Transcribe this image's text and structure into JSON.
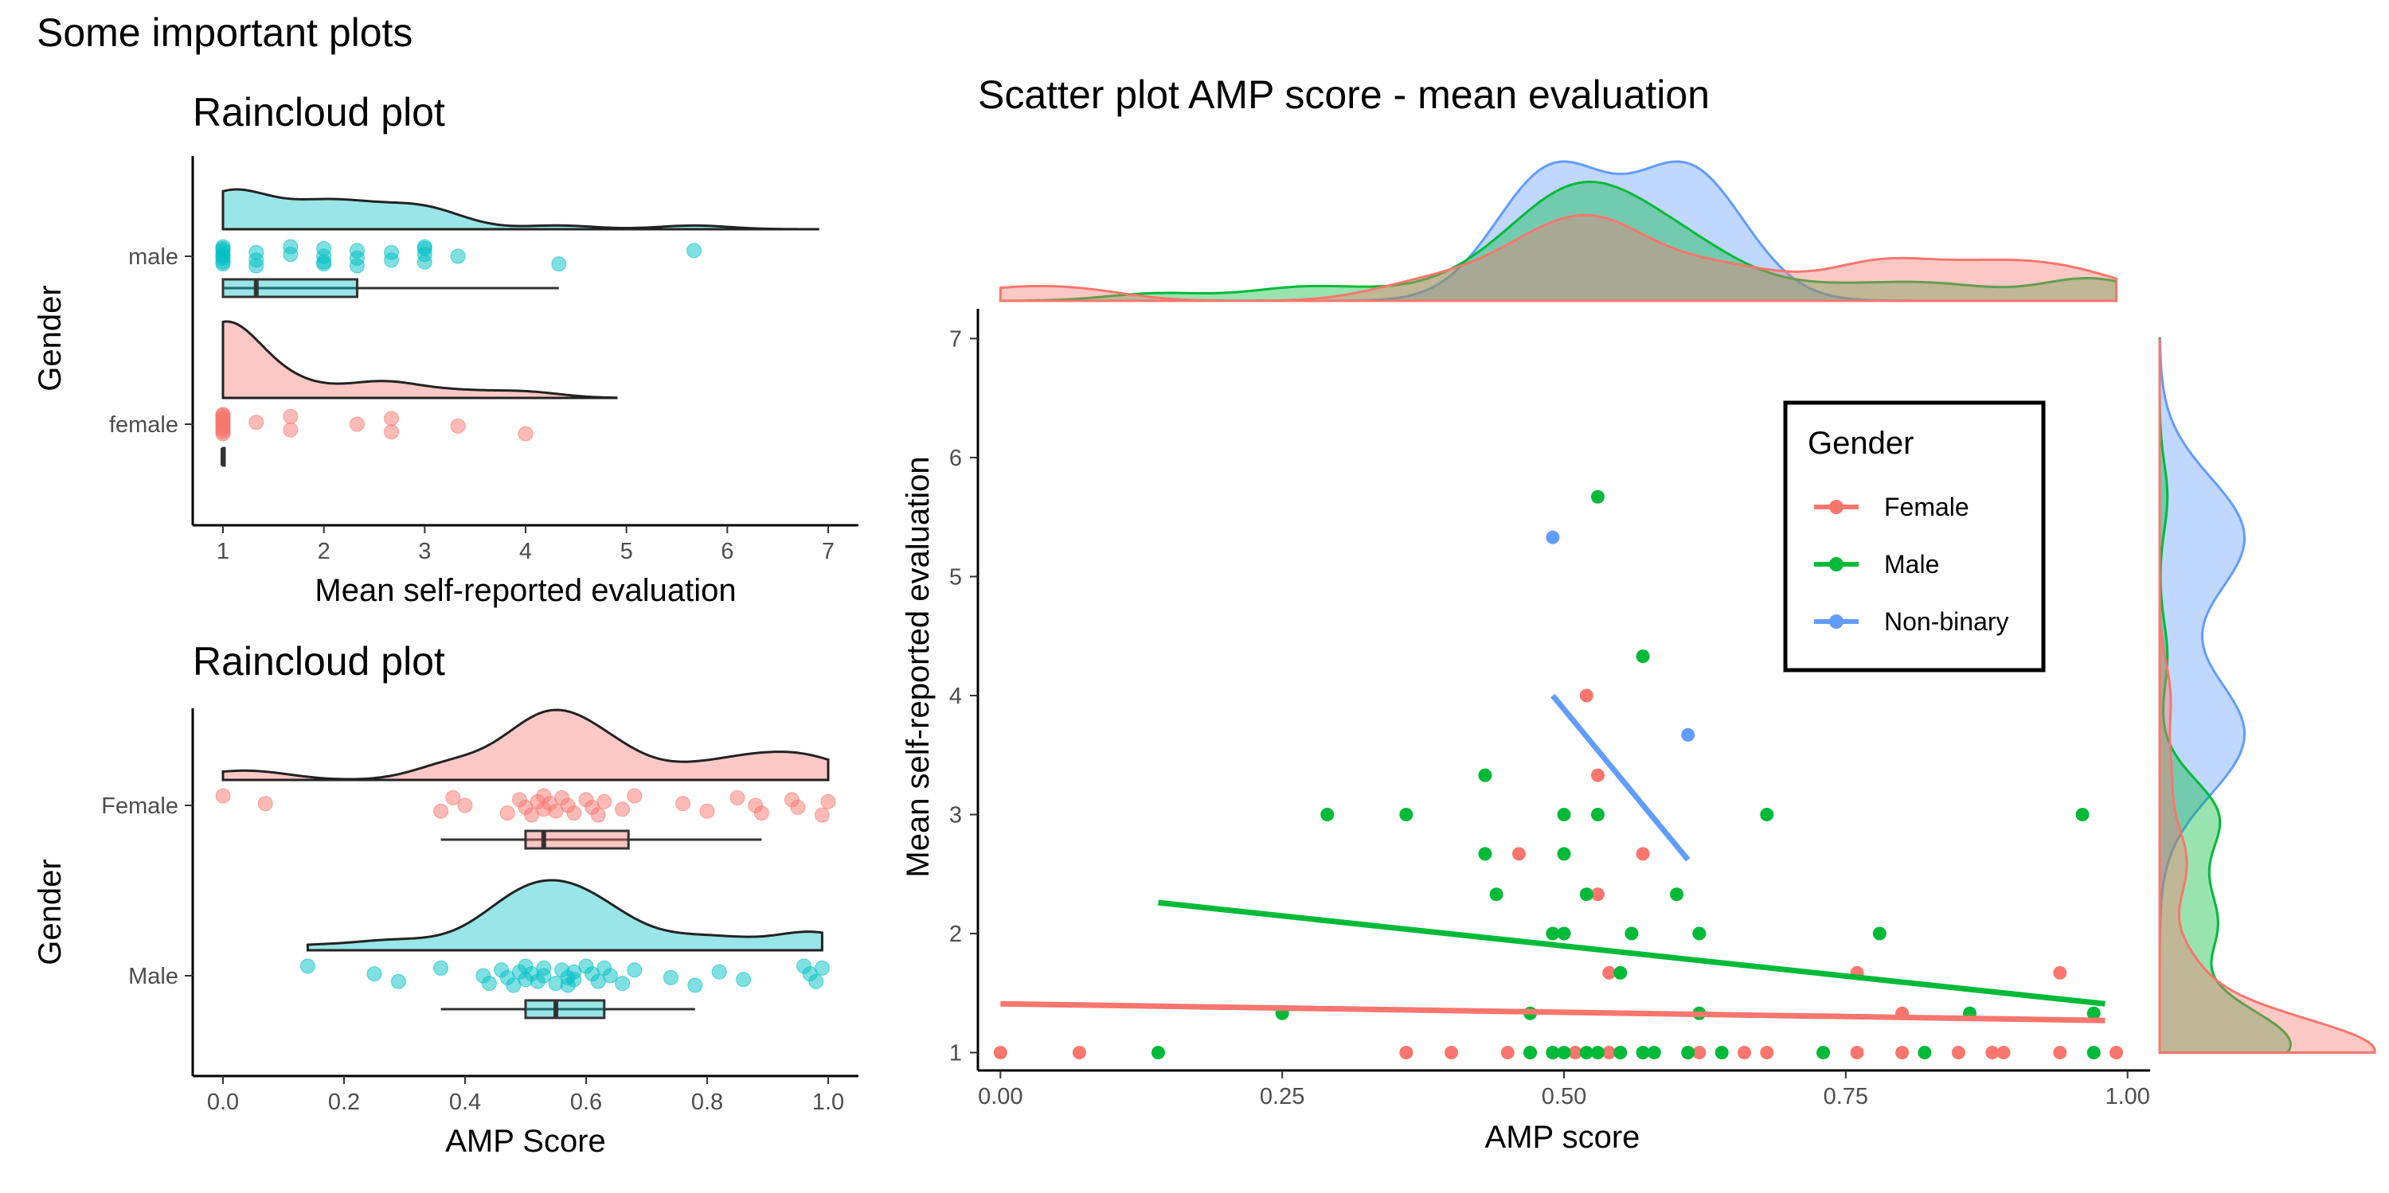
{
  "page_title": "Some important plots",
  "colors": {
    "female": "#F8766D",
    "male": "#00BA38",
    "nonbinary": "#619CFF",
    "rc_male": "#00BFC4",
    "rc_female": "#F8766D"
  },
  "chart_data": [
    {
      "type": "raincloud",
      "title": "Raincloud plot",
      "xlabel": "Mean self-reported evaluation",
      "ylabel": "Gender",
      "xlim": [
        0.7,
        7.3
      ],
      "xticks": [
        "1",
        "2",
        "3",
        "4",
        "5",
        "6",
        "7"
      ],
      "categories": [
        "male",
        "female"
      ],
      "series": [
        {
          "name": "male",
          "points": [
            1,
            1,
            1,
            1,
            1,
            1,
            1,
            1,
            1.33,
            1.33,
            1.33,
            1.67,
            1.67,
            2,
            2,
            2,
            2,
            2.33,
            2.33,
            2.33,
            2.67,
            2.67,
            3,
            3,
            3,
            3,
            3.33,
            4.33,
            5.67
          ],
          "box": {
            "min": 1,
            "q1": 1,
            "median": 1.33,
            "q3": 2.33,
            "max": 4.33
          },
          "density_max": 6.9
        },
        {
          "name": "female",
          "points": [
            1,
            1,
            1,
            1,
            1,
            1,
            1,
            1,
            1,
            1,
            1,
            1,
            1.33,
            1.67,
            1.67,
            2.33,
            2.67,
            2.67,
            3.33,
            4
          ],
          "box": {
            "min": 1,
            "q1": 1,
            "median": 1,
            "q3": 1,
            "max": 1
          },
          "density_max": 4.9
        }
      ]
    },
    {
      "type": "raincloud",
      "title": "Raincloud plot",
      "xlabel": "AMP Score",
      "ylabel": "Gender",
      "xlim": [
        -0.05,
        1.05
      ],
      "xticks": [
        "0.0",
        "0.2",
        "0.4",
        "0.6",
        "0.8",
        "1.0"
      ],
      "categories": [
        "Female",
        "Male"
      ],
      "series": [
        {
          "name": "Female",
          "points": [
            0.0,
            0.07,
            0.36,
            0.38,
            0.4,
            0.47,
            0.49,
            0.5,
            0.51,
            0.52,
            0.53,
            0.53,
            0.54,
            0.55,
            0.56,
            0.57,
            0.58,
            0.6,
            0.61,
            0.62,
            0.63,
            0.66,
            0.68,
            0.76,
            0.8,
            0.85,
            0.88,
            0.89,
            0.94,
            0.95,
            0.99,
            1.0
          ],
          "box": {
            "min": 0.36,
            "q1": 0.5,
            "median": 0.53,
            "q3": 0.67,
            "max": 0.89
          }
        },
        {
          "name": "Male",
          "points": [
            0.14,
            0.25,
            0.29,
            0.36,
            0.43,
            0.44,
            0.46,
            0.47,
            0.48,
            0.49,
            0.5,
            0.5,
            0.51,
            0.52,
            0.53,
            0.53,
            0.55,
            0.56,
            0.57,
            0.57,
            0.58,
            0.58,
            0.6,
            0.61,
            0.62,
            0.63,
            0.64,
            0.66,
            0.68,
            0.74,
            0.78,
            0.82,
            0.86,
            0.96,
            0.97,
            0.98,
            0.99
          ],
          "box": {
            "min": 0.36,
            "q1": 0.5,
            "median": 0.55,
            "q3": 0.63,
            "max": 0.78
          }
        }
      ]
    },
    {
      "type": "scatter",
      "title": "Scatter plot AMP score - mean evaluation",
      "xlabel": "AMP score",
      "ylabel": "Mean self-reported evaluation",
      "xlim": [
        -0.02,
        1.02
      ],
      "ylim": [
        0.85,
        7.25
      ],
      "xticks": [
        "0.00",
        "0.25",
        "0.50",
        "0.75",
        "1.00"
      ],
      "yticks": [
        "1",
        "2",
        "3",
        "4",
        "5",
        "6",
        "7"
      ],
      "legend": {
        "title": "Gender",
        "position": "top-right"
      },
      "series": [
        {
          "name": "Female",
          "color": "#F8766D",
          "points": [
            [
              0.0,
              1
            ],
            [
              0.07,
              1
            ],
            [
              0.36,
              1
            ],
            [
              0.4,
              1
            ],
            [
              0.45,
              1
            ],
            [
              0.47,
              1
            ],
            [
              0.49,
              1
            ],
            [
              0.51,
              1
            ],
            [
              0.54,
              1
            ],
            [
              0.61,
              1
            ],
            [
              0.62,
              1
            ],
            [
              0.66,
              1
            ],
            [
              0.68,
              1
            ],
            [
              0.76,
              1
            ],
            [
              0.8,
              1
            ],
            [
              0.85,
              1
            ],
            [
              0.88,
              1
            ],
            [
              0.89,
              1
            ],
            [
              0.94,
              1
            ],
            [
              0.99,
              1
            ],
            [
              0.46,
              2.67
            ],
            [
              0.53,
              2.33
            ],
            [
              0.57,
              2.67
            ],
            [
              0.54,
              1.67
            ],
            [
              0.76,
              1.67
            ],
            [
              0.8,
              1.33
            ],
            [
              0.94,
              1.67
            ],
            [
              0.52,
              4.0
            ],
            [
              0.53,
              3.33
            ]
          ],
          "trend": [
            [
              0.0,
              1.41
            ],
            [
              0.98,
              1.27
            ]
          ]
        },
        {
          "name": "Male",
          "color": "#00BA38",
          "points": [
            [
              0.14,
              1
            ],
            [
              0.47,
              1
            ],
            [
              0.49,
              1
            ],
            [
              0.5,
              1
            ],
            [
              0.52,
              1
            ],
            [
              0.53,
              1
            ],
            [
              0.55,
              1
            ],
            [
              0.57,
              1
            ],
            [
              0.58,
              1
            ],
            [
              0.61,
              1
            ],
            [
              0.64,
              1
            ],
            [
              0.73,
              1
            ],
            [
              0.82,
              1
            ],
            [
              0.97,
              1
            ],
            [
              0.25,
              1.33
            ],
            [
              0.47,
              1.33
            ],
            [
              0.62,
              1.33
            ],
            [
              0.86,
              1.33
            ],
            [
              0.97,
              1.33
            ],
            [
              0.49,
              2.0
            ],
            [
              0.5,
              2.0
            ],
            [
              0.55,
              1.67
            ],
            [
              0.56,
              2.0
            ],
            [
              0.62,
              2.0
            ],
            [
              0.78,
              2.0
            ],
            [
              0.44,
              2.33
            ],
            [
              0.52,
              2.33
            ],
            [
              0.6,
              2.33
            ],
            [
              0.43,
              2.67
            ],
            [
              0.5,
              2.67
            ],
            [
              0.29,
              3.0
            ],
            [
              0.36,
              3.0
            ],
            [
              0.5,
              3.0
            ],
            [
              0.53,
              3.0
            ],
            [
              0.68,
              3.0
            ],
            [
              0.96,
              3.0
            ],
            [
              0.43,
              3.33
            ],
            [
              0.57,
              4.33
            ],
            [
              0.53,
              5.67
            ]
          ],
          "trend": [
            [
              0.14,
              2.26
            ],
            [
              0.98,
              1.41
            ]
          ]
        },
        {
          "name": "Non-binary",
          "color": "#619CFF",
          "points": [
            [
              0.49,
              5.33
            ],
            [
              0.61,
              3.67
            ]
          ],
          "trend": [
            [
              0.49,
              4.0
            ],
            [
              0.61,
              2.62
            ]
          ]
        }
      ]
    }
  ]
}
